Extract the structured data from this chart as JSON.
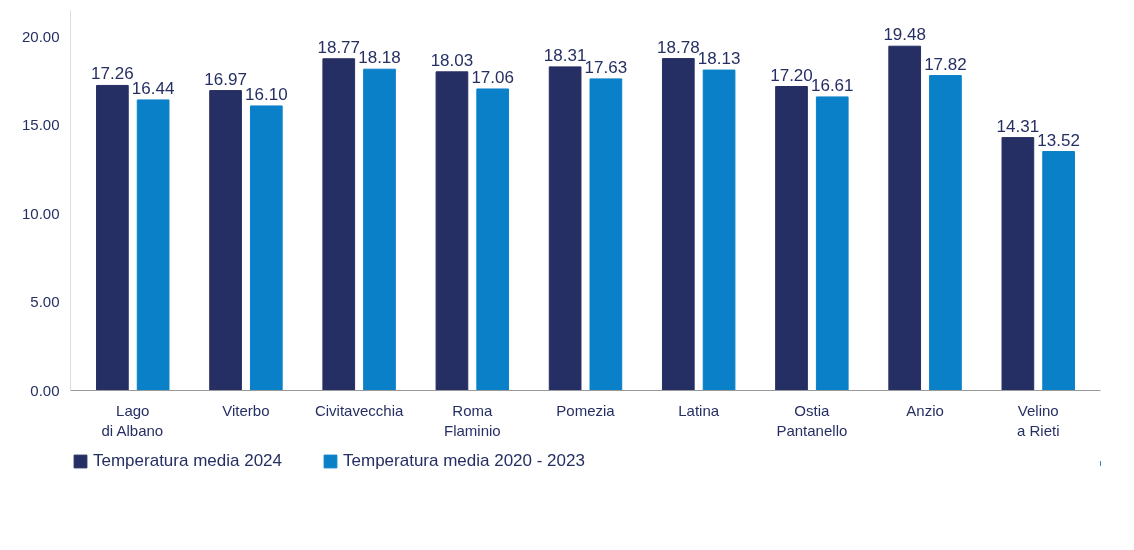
{
  "chart_data": {
    "type": "bar",
    "categories": [
      "Lago\ndi Albano",
      "Viterbo",
      "Civitavecchia",
      "Roma\nFlaminio",
      "Pomezia",
      "Latina",
      "Ostia\nPantanello",
      "Anzio",
      "Velino\na Rieti"
    ],
    "series": [
      {
        "name": "Temperatura media 2024",
        "color": "#262f63",
        "values": [
          17.26,
          16.97,
          18.77,
          18.03,
          18.31,
          18.78,
          17.2,
          19.48,
          14.31
        ],
        "value_labels": [
          "17.26",
          "16.97",
          "18.77",
          "18.03",
          "18.31",
          "18.78",
          "17.20",
          "19.48",
          "14.31"
        ]
      },
      {
        "name": "Temperatura media 2020 - 2023",
        "color": "#0a80c8",
        "values": [
          16.44,
          16.1,
          18.18,
          17.06,
          17.63,
          18.13,
          16.61,
          17.82,
          13.52
        ],
        "value_labels": [
          "16.44",
          "16.10",
          "18.18",
          "17.06",
          "17.63",
          "18.13",
          "16.61",
          "17.82",
          "13.52"
        ]
      }
    ],
    "ylim": [
      0,
      21.5
    ],
    "yticks": [
      {
        "value": 0,
        "label": "0.00"
      },
      {
        "value": 5,
        "label": "5.00"
      },
      {
        "value": 10,
        "label": "10.00"
      },
      {
        "value": 15,
        "label": "15.00"
      },
      {
        "value": 20,
        "label": "20.00"
      }
    ],
    "grid": false,
    "legend": "bottom left"
  }
}
